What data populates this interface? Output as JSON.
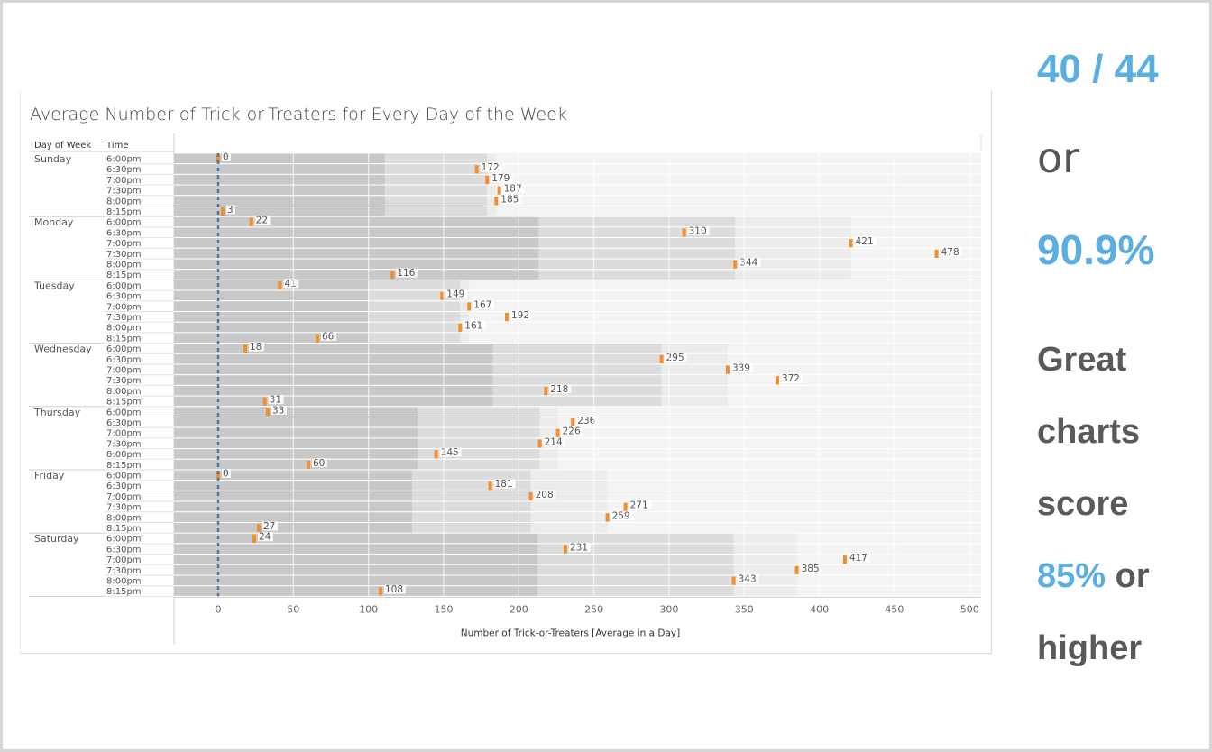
{
  "chart_data": {
    "type": "bar",
    "title": "Average Number of Trick-or-Treaters for Every Day of the Week",
    "xlabel": "Number of Trick-or-Treaters [Average in a Day]",
    "row_headers": [
      "Day of Week",
      "Time"
    ],
    "xlim": [
      -30,
      505
    ],
    "xticks": [
      0,
      50,
      100,
      150,
      200,
      250,
      300,
      350,
      400,
      450,
      500
    ],
    "reference_line": 0,
    "days": [
      {
        "name": "Sunday",
        "times": [
          "6:00pm",
          "6:30pm",
          "7:00pm",
          "7:30pm",
          "8:00pm",
          "8:15pm"
        ],
        "values": [
          0,
          172,
          179,
          187,
          185,
          3
        ]
      },
      {
        "name": "Monday",
        "times": [
          "6:00pm",
          "6:30pm",
          "7:00pm",
          "7:30pm",
          "8:00pm",
          "8:15pm"
        ],
        "values": [
          22,
          310,
          421,
          478,
          344,
          116
        ]
      },
      {
        "name": "Tuesday",
        "times": [
          "6:00pm",
          "6:30pm",
          "7:00pm",
          "7:30pm",
          "8:00pm",
          "8:15pm"
        ],
        "values": [
          41,
          149,
          167,
          192,
          161,
          66
        ]
      },
      {
        "name": "Wednesday",
        "times": [
          "6:00pm",
          "6:30pm",
          "7:00pm",
          "7:30pm",
          "8:00pm",
          "8:15pm"
        ],
        "values": [
          18,
          295,
          339,
          372,
          218,
          31
        ]
      },
      {
        "name": "Thursday",
        "times": [
          "6:00pm",
          "6:30pm",
          "7:00pm",
          "7:30pm",
          "8:00pm",
          "8:15pm"
        ],
        "values": [
          33,
          236,
          226,
          214,
          145,
          60
        ]
      },
      {
        "name": "Friday",
        "times": [
          "6:00pm",
          "6:30pm",
          "7:00pm",
          "7:30pm",
          "8:00pm",
          "8:15pm"
        ],
        "values": [
          0,
          181,
          208,
          271,
          259,
          27
        ]
      },
      {
        "name": "Saturday",
        "times": [
          "6:00pm",
          "6:30pm",
          "7:00pm",
          "7:30pm",
          "8:00pm",
          "8:15pm"
        ],
        "values": [
          24,
          231,
          417,
          385,
          343,
          108
        ]
      }
    ],
    "colors": {
      "marker": "#f28e2b",
      "band_dark": "#c8c8c8",
      "band_mid": "#dcdcdc",
      "band_light": "#ececec",
      "background": "#f4f4f4",
      "reference": "#4e79a7"
    }
  },
  "sidebar": {
    "score": "40 / 44",
    "or_label": "or",
    "percent": "90.9%",
    "msg_line1": "Great",
    "msg_line2": "charts",
    "msg_line3": "score",
    "msg_highlight": "85%",
    "msg_or": " or",
    "msg_line5": "higher"
  },
  "accent_color": "#5aaee0"
}
